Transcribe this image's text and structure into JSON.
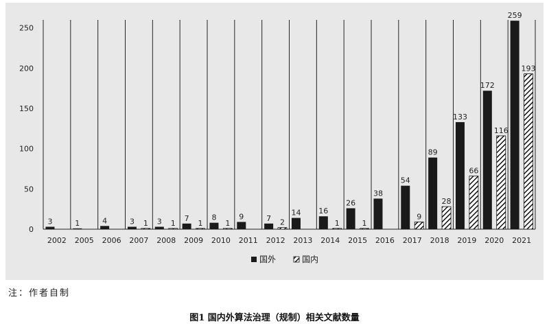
{
  "colors": {
    "domestic_fill": "#1a1a1a",
    "foreign_fill": "#1a1a1a",
    "gridline": "#222222",
    "panel_bg": "#e8e8e8"
  },
  "chart_data": {
    "type": "bar",
    "categories": [
      "2002",
      "2005",
      "2006",
      "2007",
      "2008",
      "2009",
      "2010",
      "2011",
      "2012",
      "2013",
      "2014",
      "2015",
      "2016",
      "2017",
      "2018",
      "2019",
      "2020",
      "2021"
    ],
    "series": [
      {
        "name": "国外",
        "pattern": "solid",
        "values": [
          3,
          1,
          4,
          3,
          3,
          7,
          8,
          9,
          7,
          14,
          16,
          26,
          38,
          54,
          89,
          133,
          172,
          259
        ]
      },
      {
        "name": "国内",
        "pattern": "hatched",
        "values": [
          null,
          null,
          null,
          1,
          1,
          1,
          1,
          null,
          2,
          null,
          1,
          1,
          null,
          9,
          28,
          66,
          116,
          193
        ]
      }
    ],
    "yticks": [
      0,
      50,
      100,
      150,
      200,
      250
    ],
    "ylim": [
      0,
      260
    ],
    "xlabel": "",
    "ylabel": "",
    "grid": "vertical separators between years",
    "legend_position": "bottom-center"
  },
  "note": "注：作者自制",
  "caption": "图1  国内外算法治理（规制）相关文献数量"
}
